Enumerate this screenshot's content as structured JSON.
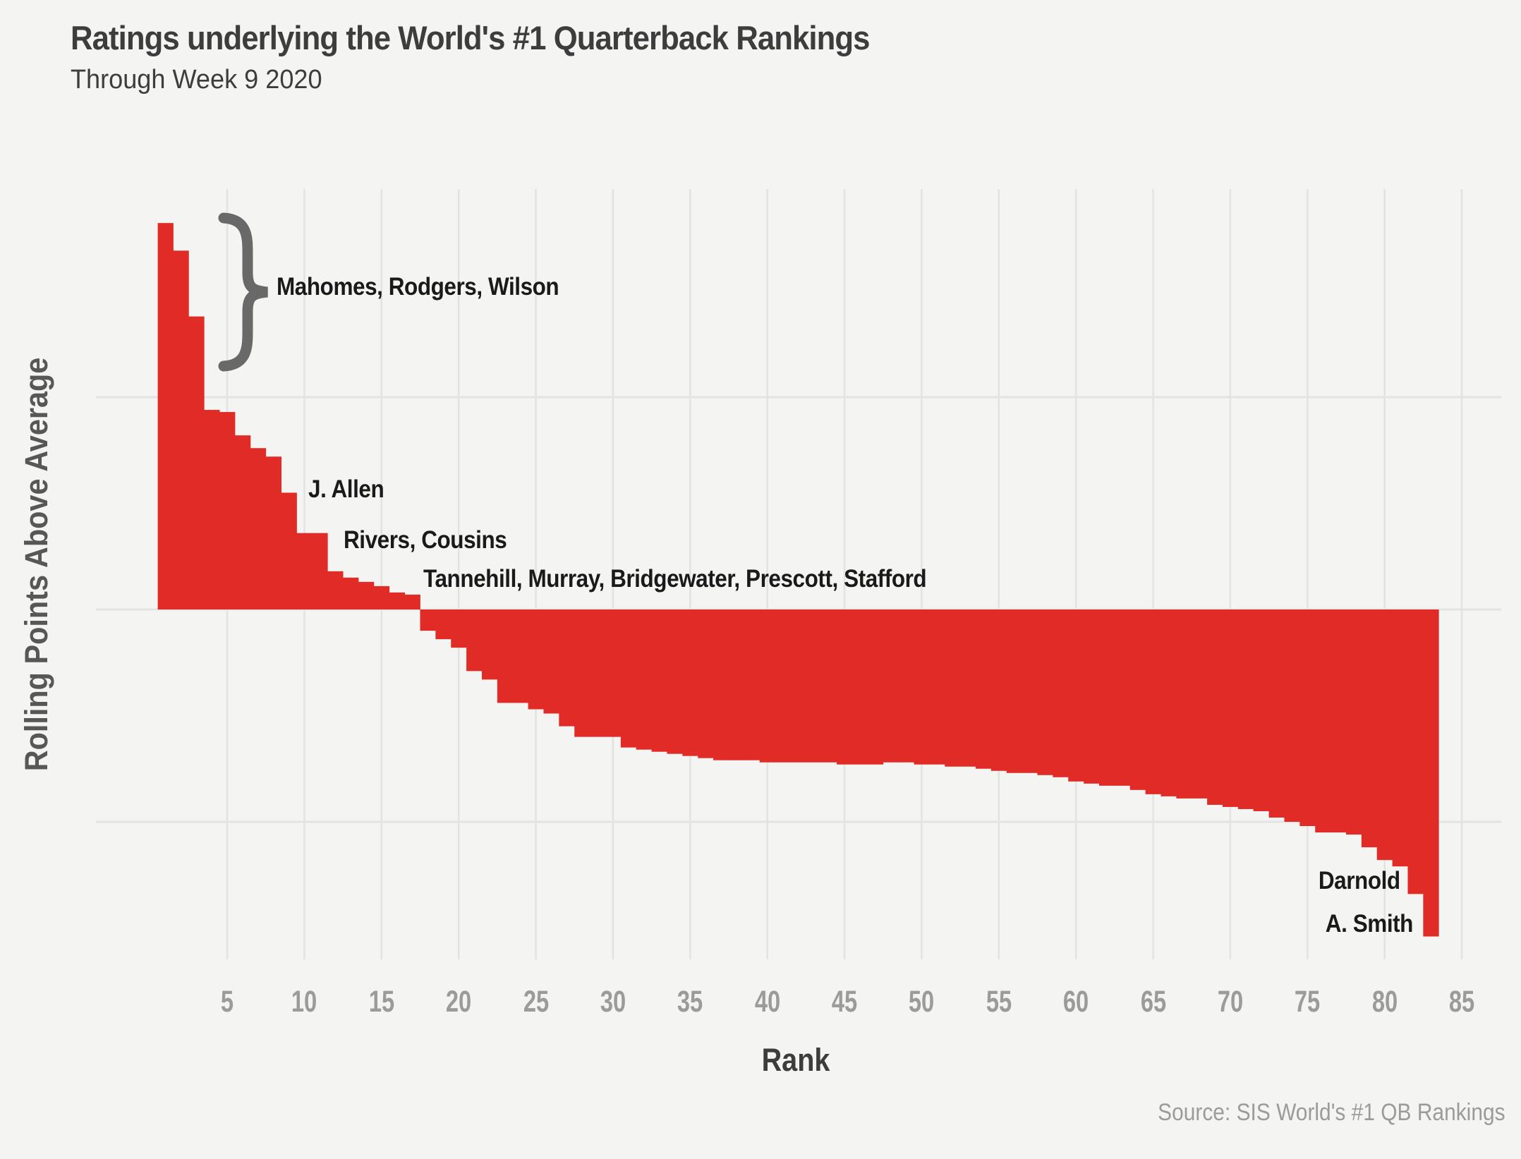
{
  "page": {
    "title": "Ratings underlying the World's #1 Quarterback Rankings",
    "subtitle": "Through Week 9 2020",
    "source": "Source: SIS World's #1 QB Rankings"
  },
  "axes": {
    "x_label": "Rank",
    "y_label": "Rolling Points Above Average"
  },
  "annotations": {
    "top3": {
      "text": "Mahomes, Rodgers, Wilson"
    },
    "allen": {
      "text": "J. Allen"
    },
    "rivers": {
      "text": "Rivers, Cousins"
    },
    "mid_group": {
      "text": "Tannehill, Murray, Bridgewater, Prescott, Stafford"
    },
    "darnold": {
      "text": "Darnold"
    },
    "smith": {
      "text": "A. Smith"
    }
  },
  "colors": {
    "bar": "#e12b26",
    "background": "#f4f4f2",
    "grid": "#e3e3e1",
    "brace": "#696969",
    "tick_label": "#9b9b9b",
    "title": "#3d3d3d",
    "annotation": "#1a1a1a",
    "axis_title": "#575757",
    "source": "#9b9b9b"
  },
  "chart_data": {
    "type": "bar",
    "title": "Ratings underlying the World's #1 Quarterback Rankings",
    "subtitle": "Through Week 9 2020",
    "xlabel": "Rank",
    "ylabel": "Rolling Points Above Average",
    "source": "Source: SIS World's #1 QB Rankings",
    "x_ticks": [
      5,
      10,
      15,
      20,
      25,
      30,
      35,
      40,
      45,
      50,
      55,
      60,
      65,
      70,
      75,
      80,
      85
    ],
    "xlim": [
      0.5,
      85.5
    ],
    "ylim": [
      -1.65,
      1.98
    ],
    "y_axis_tick_labels": "none (y axis intentionally unlabeled)",
    "values_unit": "horizontal-gridline spacings above/below the zero line",
    "horizontal_gridlines_at": [
      1,
      0,
      -1
    ],
    "grid": "on",
    "legend": "none",
    "n_bars": 83,
    "ranks_start_at": 1,
    "values": [
      1.82,
      1.69,
      1.38,
      0.94,
      0.93,
      0.82,
      0.76,
      0.72,
      0.55,
      0.36,
      0.36,
      0.18,
      0.15,
      0.13,
      0.11,
      0.08,
      0.07,
      -0.1,
      -0.14,
      -0.18,
      -0.29,
      -0.33,
      -0.44,
      -0.44,
      -0.47,
      -0.49,
      -0.55,
      -0.6,
      -0.6,
      -0.6,
      -0.65,
      -0.66,
      -0.67,
      -0.68,
      -0.69,
      -0.7,
      -0.71,
      -0.71,
      -0.71,
      -0.72,
      -0.72,
      -0.72,
      -0.72,
      -0.72,
      -0.73,
      -0.73,
      -0.73,
      -0.72,
      -0.72,
      -0.73,
      -0.73,
      -0.74,
      -0.74,
      -0.75,
      -0.76,
      -0.77,
      -0.77,
      -0.78,
      -0.79,
      -0.81,
      -0.82,
      -0.83,
      -0.83,
      -0.85,
      -0.87,
      -0.88,
      -0.89,
      -0.89,
      -0.92,
      -0.93,
      -0.94,
      -0.95,
      -0.98,
      -1.0,
      -1.02,
      -1.05,
      -1.05,
      -1.06,
      -1.12,
      -1.18,
      -1.21,
      -1.34,
      -1.54
    ],
    "annotations": [
      {
        "text": "Mahomes, Rodgers, Wilson",
        "applies_to_ranks": [
          1,
          2,
          3
        ],
        "marker": "curly-brace"
      },
      {
        "text": "J. Allen",
        "applies_to_ranks": [
          9
        ]
      },
      {
        "text": "Rivers, Cousins",
        "applies_to_ranks": [
          10,
          11
        ]
      },
      {
        "text": "Tannehill, Murray, Bridgewater, Prescott, Stafford",
        "applies_to_ranks": [
          13,
          14,
          15,
          16,
          17
        ]
      },
      {
        "text": "Darnold",
        "applies_to_ranks": [
          82
        ]
      },
      {
        "text": "A. Smith",
        "applies_to_ranks": [
          83
        ]
      }
    ]
  }
}
